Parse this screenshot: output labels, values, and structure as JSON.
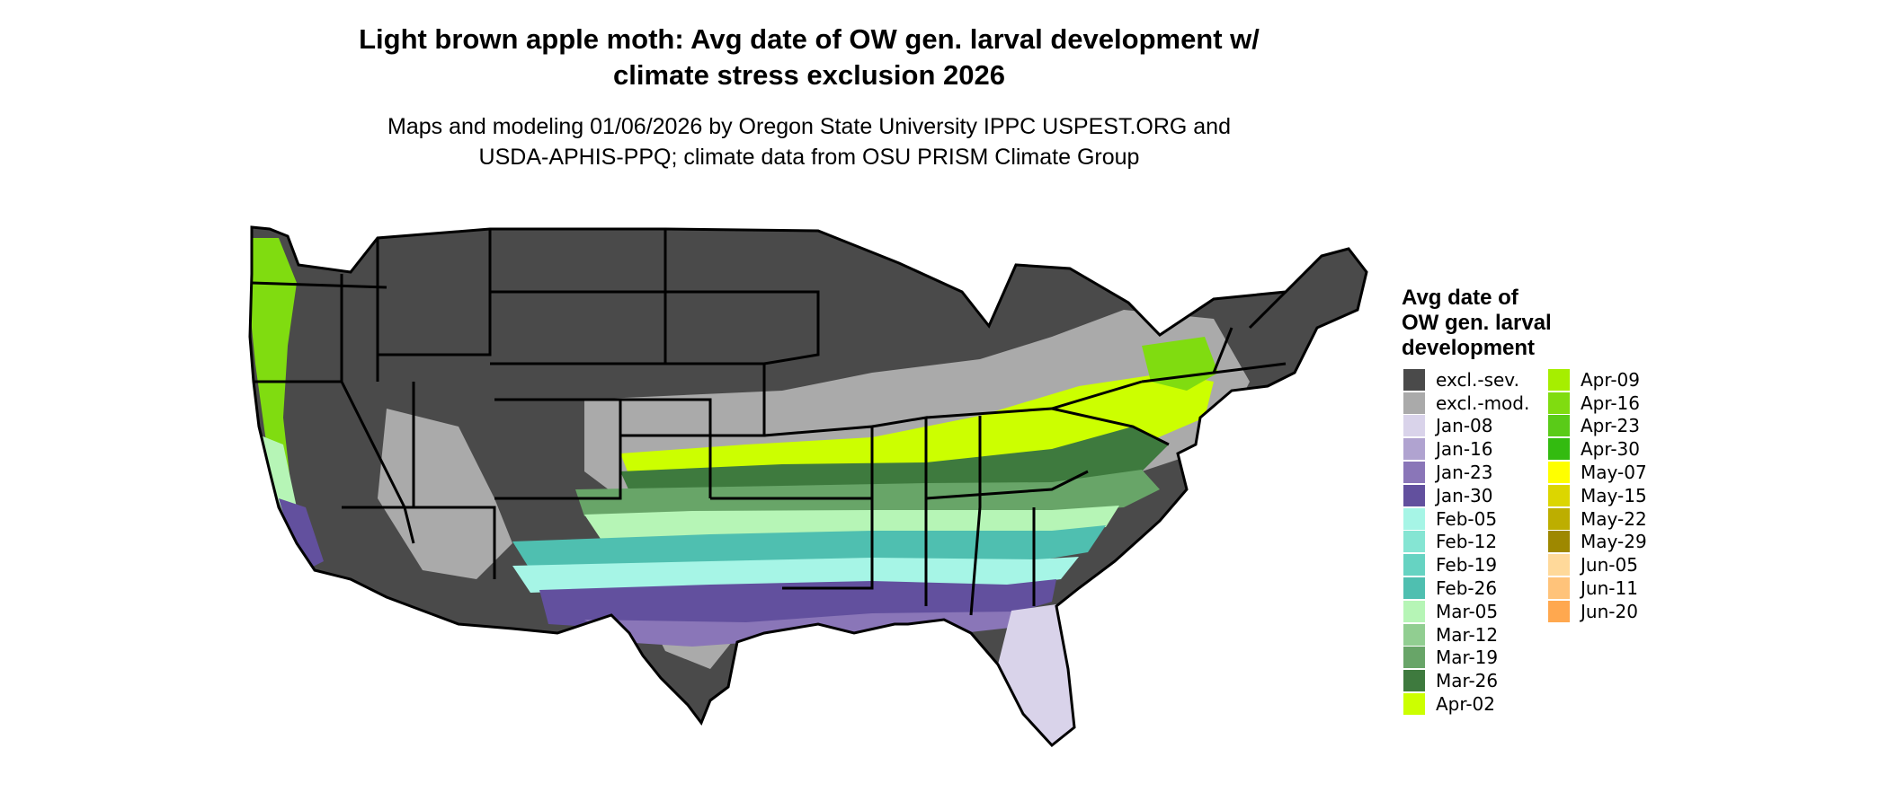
{
  "title": {
    "line1": "Light brown apple moth: Avg date of OW gen. larval development w/",
    "line2": "climate stress exclusion 2026"
  },
  "subtitle": {
    "line1": "Maps and modeling 01/06/2026 by Oregon State University IPPC USPEST.ORG and",
    "line2": "USDA-APHIS-PPQ; climate data from OSU PRISM Climate Group"
  },
  "legend": {
    "title": {
      "line1": "Avg date of",
      "line2": "OW gen. larval",
      "line3": "development"
    },
    "columns": [
      [
        {
          "label": "excl.-sev.",
          "color": "#4a4a4a"
        },
        {
          "label": "excl.-mod.",
          "color": "#aaaaaa"
        },
        {
          "label": "Jan-08",
          "color": "#d9d3ea"
        },
        {
          "label": "Jan-16",
          "color": "#b0a3d0"
        },
        {
          "label": "Jan-23",
          "color": "#8a76b8"
        },
        {
          "label": "Jan-30",
          "color": "#62509e"
        },
        {
          "label": "Feb-05",
          "color": "#a6f5e6"
        },
        {
          "label": "Feb-12",
          "color": "#85e5d3"
        },
        {
          "label": "Feb-19",
          "color": "#66d3c2"
        },
        {
          "label": "Feb-26",
          "color": "#4fbfb0"
        },
        {
          "label": "Mar-05",
          "color": "#b6f5b6"
        },
        {
          "label": "Mar-12",
          "color": "#91ce91"
        },
        {
          "label": "Mar-19",
          "color": "#68a568"
        },
        {
          "label": "Mar-26",
          "color": "#3e7a3e"
        },
        {
          "label": "Apr-02",
          "color": "#ccff00"
        }
      ],
      [
        {
          "label": "Apr-09",
          "color": "#a6ee00"
        },
        {
          "label": "Apr-16",
          "color": "#80dc10"
        },
        {
          "label": "Apr-23",
          "color": "#5acb18"
        },
        {
          "label": "Apr-30",
          "color": "#33bb10"
        },
        {
          "label": "May-07",
          "color": "#ffff00"
        },
        {
          "label": "May-15",
          "color": "#dcd600"
        },
        {
          "label": "May-22",
          "color": "#bdae00"
        },
        {
          "label": "May-29",
          "color": "#9e8800"
        },
        {
          "label": "Jun-05",
          "color": "#ffd99a"
        },
        {
          "label": "Jun-11",
          "color": "#ffc37a"
        },
        {
          "label": "Jun-20",
          "color": "#ffa84f"
        }
      ]
    ]
  }
}
